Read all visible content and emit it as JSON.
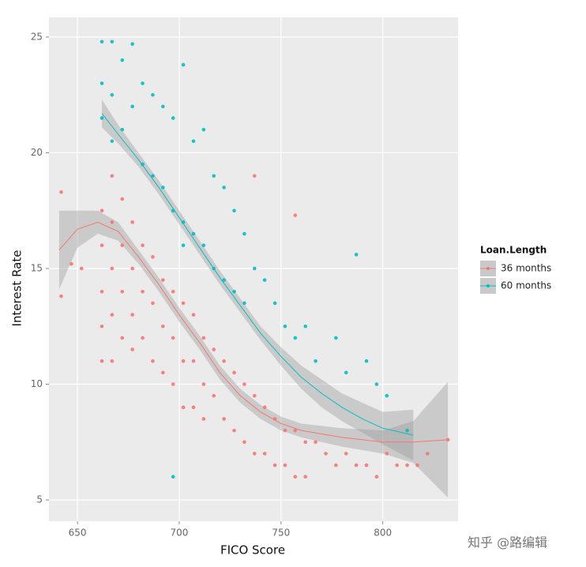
{
  "chart_data": {
    "type": "scatter",
    "x_label": "FICO Score",
    "y_label": "Interest Rate",
    "legend_title": "Loan.Length",
    "legend_position": "right",
    "grid": true,
    "watermark": "知乎 @路编辑",
    "xlim": [
      636,
      837
    ],
    "ylim": [
      4.08,
      25.85
    ],
    "xticks": [
      650,
      700,
      750,
      800
    ],
    "yticks": [
      5,
      10,
      15,
      20,
      25
    ],
    "series": [
      {
        "name": "36 months",
        "color": "#F8766D",
        "x": [
          642,
          642,
          647,
          652,
          662,
          662,
          662,
          662,
          662,
          667,
          667,
          667,
          667,
          667,
          672,
          672,
          672,
          672,
          677,
          677,
          677,
          677,
          682,
          682,
          682,
          687,
          687,
          687,
          692,
          692,
          692,
          697,
          697,
          697,
          702,
          702,
          702,
          707,
          707,
          707,
          712,
          712,
          712,
          717,
          717,
          722,
          722,
          727,
          727,
          732,
          732,
          737,
          737,
          742,
          742,
          747,
          747,
          752,
          752,
          757,
          757,
          762,
          762,
          767,
          772,
          777,
          782,
          787,
          792,
          797,
          802,
          807,
          812,
          817,
          822,
          832,
          737,
          757
        ],
        "values": [
          18.3,
          13.8,
          15.2,
          15,
          17.5,
          16,
          14,
          12.5,
          11,
          19,
          17,
          15,
          13,
          11,
          18,
          16,
          14,
          12,
          17,
          15,
          13,
          11.5,
          16,
          14,
          12,
          15.5,
          13.5,
          11,
          14.5,
          12.5,
          10.5,
          14,
          12,
          10,
          13.5,
          11,
          9,
          13,
          11,
          9,
          12,
          10,
          8.5,
          11.5,
          9.5,
          11,
          8.5,
          10.5,
          8,
          10,
          7.5,
          9.5,
          7,
          9,
          7,
          8.5,
          6.5,
          8,
          6.5,
          8,
          6,
          7.5,
          6,
          7.5,
          7,
          6.5,
          7,
          6.5,
          6.5,
          6,
          7,
          6.5,
          6.5,
          6.5,
          7,
          7.6,
          19,
          17.3
        ],
        "smooth": {
          "x": [
            641,
            650,
            660,
            670,
            680,
            690,
            700,
            710,
            720,
            730,
            740,
            750,
            760,
            780,
            800,
            815,
            832
          ],
          "values": [
            15.8,
            16.7,
            17,
            16.6,
            15.5,
            14.3,
            13,
            11.8,
            10.5,
            9.5,
            8.8,
            8.3,
            8.0,
            7.7,
            7.5,
            7.5,
            7.6
          ],
          "lower": [
            14.1,
            15.9,
            16.5,
            16.2,
            15.2,
            14.0,
            12.7,
            11.5,
            10.2,
            9.2,
            8.5,
            8.0,
            7.7,
            7.3,
            7.0,
            6.6,
            5.1
          ],
          "upper": [
            17.5,
            17.5,
            17.5,
            17.0,
            15.8,
            14.6,
            13.3,
            12.1,
            10.8,
            9.8,
            9.1,
            8.6,
            8.3,
            8.1,
            8.0,
            8.4,
            10.1
          ]
        }
      },
      {
        "name": "60 months",
        "color": "#00BFC4",
        "x": [
          662,
          662,
          662,
          667,
          667,
          667,
          672,
          672,
          677,
          677,
          682,
          682,
          687,
          687,
          692,
          692,
          697,
          697,
          702,
          702,
          707,
          707,
          712,
          712,
          717,
          717,
          722,
          722,
          727,
          727,
          732,
          732,
          737,
          742,
          747,
          752,
          757,
          762,
          767,
          777,
          782,
          787,
          792,
          797,
          802,
          812,
          697,
          702
        ],
        "values": [
          24.8,
          23,
          21.5,
          24.8,
          22.5,
          20.5,
          24,
          21,
          24.7,
          22,
          23,
          19.5,
          22.5,
          19,
          22,
          18.5,
          21.5,
          17.5,
          23.8,
          17,
          20.5,
          16.5,
          21,
          16,
          19,
          15,
          18.5,
          14.5,
          17.5,
          14,
          16.5,
          13.5,
          15,
          14.5,
          13.5,
          12.5,
          12,
          12.5,
          11,
          12,
          10.5,
          15.6,
          11,
          10,
          9.5,
          8,
          6,
          16
        ],
        "smooth": {
          "x": [
            662,
            670,
            680,
            690,
            700,
            710,
            720,
            730,
            740,
            750,
            760,
            770,
            780,
            790,
            800,
            815
          ],
          "values": [
            21.7,
            20.8,
            19.7,
            18.5,
            17.2,
            15.9,
            14.6,
            13.4,
            12.2,
            11.2,
            10.3,
            9.6,
            9.0,
            8.5,
            8.1,
            7.8
          ],
          "lower": [
            21.1,
            20.4,
            19.4,
            18.2,
            16.9,
            15.6,
            14.3,
            13.1,
            11.9,
            10.8,
            9.8,
            9.0,
            8.4,
            7.9,
            7.4,
            6.7
          ],
          "upper": [
            22.3,
            21.2,
            20.0,
            18.8,
            17.5,
            16.2,
            14.9,
            13.7,
            12.5,
            11.6,
            10.8,
            10.2,
            9.6,
            9.2,
            8.8,
            8.9
          ]
        }
      }
    ]
  }
}
